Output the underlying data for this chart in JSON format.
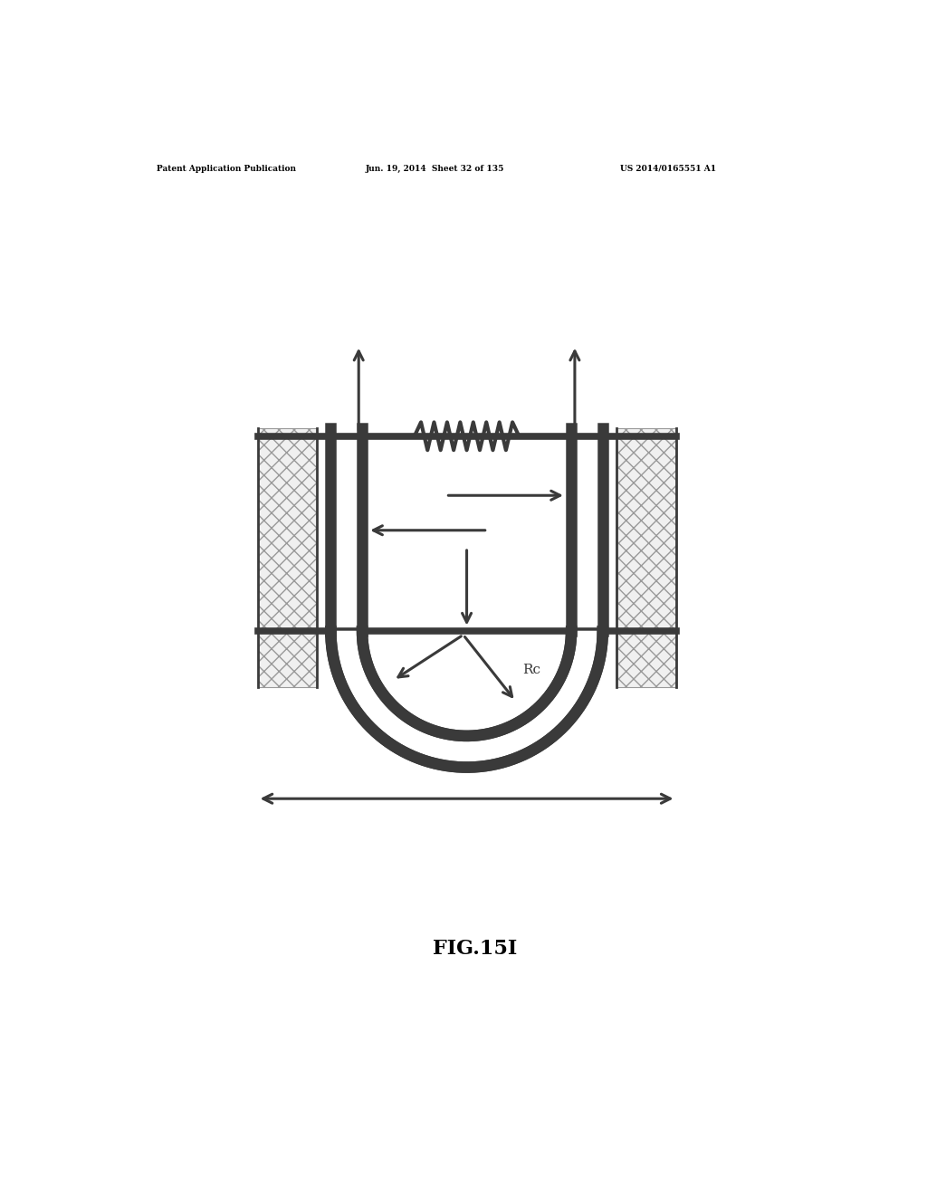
{
  "bg_color": "#ffffff",
  "dark_color": "#3a3a3a",
  "hatch_color": "#888888",
  "header_text": "Patent Application Publication",
  "header_date": "Jun. 19, 2014  Sheet 32 of 135",
  "header_patent": "US 2014/0165551 A1",
  "figure_label": "FIG.15I",
  "Rc_label": "Rc",
  "fig_width": 10.24,
  "fig_height": 13.2,
  "dpi": 100
}
